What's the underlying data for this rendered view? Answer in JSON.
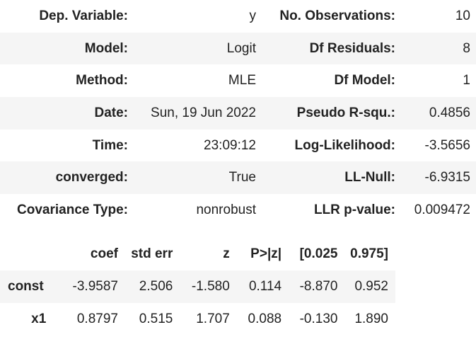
{
  "summary": {
    "rows": [
      {
        "l1": "Dep. Variable:",
        "v1": "y",
        "l2": "No. Observations:",
        "v2": "10"
      },
      {
        "l1": "Model:",
        "v1": "Logit",
        "l2": "Df Residuals:",
        "v2": "8"
      },
      {
        "l1": "Method:",
        "v1": "MLE",
        "l2": "Df Model:",
        "v2": "1"
      },
      {
        "l1": "Date:",
        "v1": "Sun, 19 Jun 2022",
        "l2": "Pseudo R-squ.:",
        "v2": "0.4856"
      },
      {
        "l1": "Time:",
        "v1": "23:09:12",
        "l2": "Log-Likelihood:",
        "v2": "-3.5656"
      },
      {
        "l1": "converged:",
        "v1": "True",
        "l2": "LL-Null:",
        "v2": "-6.9315"
      },
      {
        "l1": "Covariance Type:",
        "v1": "nonrobust",
        "l2": "LLR p-value:",
        "v2": "0.009472"
      }
    ]
  },
  "coef_table": {
    "headers": [
      "",
      "coef",
      "std err",
      "z",
      "P>|z|",
      "[0.025",
      "0.975]"
    ],
    "rows": [
      {
        "name": "const",
        "coef": "-3.9587",
        "stderr": "2.506",
        "z": "-1.580",
        "p": "0.114",
        "lo": "-8.870",
        "hi": "0.952"
      },
      {
        "name": "x1",
        "coef": "0.8797",
        "stderr": "0.515",
        "z": "1.707",
        "p": "0.088",
        "lo": "-0.130",
        "hi": "1.890"
      }
    ]
  }
}
